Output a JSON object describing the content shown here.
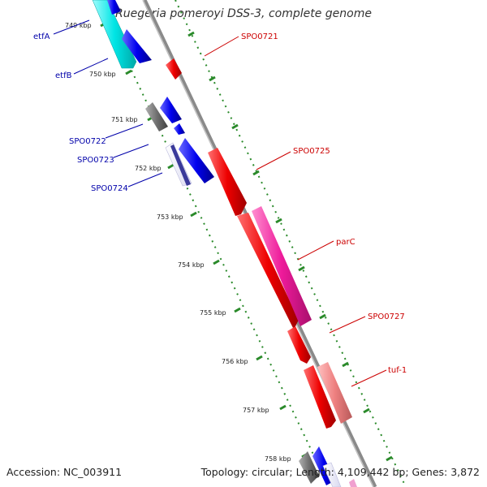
{
  "title": "Ruegeria pomeroyi DSS-3, complete genome",
  "accession_text": "Accession: NC_003911",
  "summary_text": "Topology: circular; Length: 4,109,442 bp; Genes: 3,872",
  "colors": {
    "backbone": "#8a8a8a",
    "tick_marks": "#2a8a2a",
    "label_reverse": "#0000aa",
    "label_forward": "#cc0000",
    "cyan_feature": "#00e5e5",
    "blue_feature": "#0000ee",
    "grey_feature": "#707070",
    "red_feature": "#ee0000",
    "magenta_feature": "#ee1a9a",
    "salmon_feature": "#ee8080"
  },
  "ticks": [
    "749 kbp",
    "750 kbp",
    "751 kbp",
    "752 kbp",
    "753 kbp",
    "754 kbp",
    "755 kbp",
    "756 kbp",
    "757 kbp",
    "758 kbp"
  ],
  "genes_left": [
    "etfA",
    "etfB",
    "SPO0722",
    "SPO0723",
    "SPO0724"
  ],
  "genes_right": [
    "SPO0721",
    "SPO0725",
    "parC",
    "SPO0727",
    "tuf-1"
  ]
}
